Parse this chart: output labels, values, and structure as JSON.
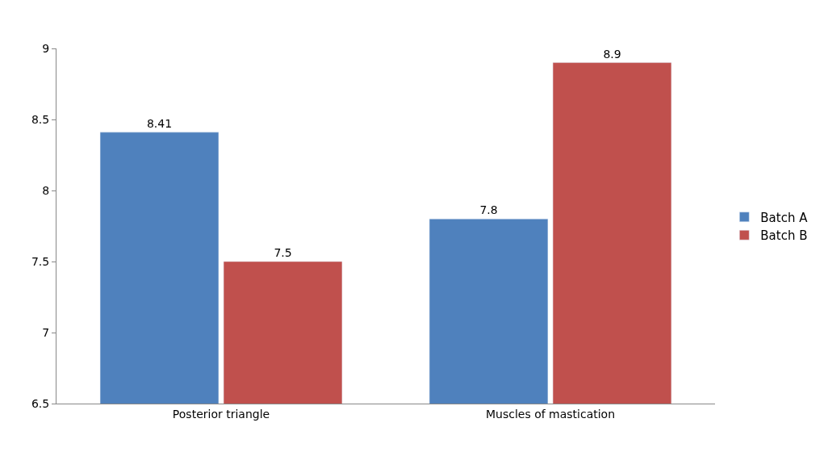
{
  "chart_data": {
    "type": "bar",
    "categories": [
      "Posterior triangle",
      "Muscles of mastication"
    ],
    "series": [
      {
        "name": "Batch A",
        "color": "#4f81bd",
        "values": [
          8.41,
          7.8
        ]
      },
      {
        "name": "Batch B",
        "color": "#c0504d",
        "values": [
          7.5,
          8.9
        ]
      }
    ],
    "ylim": [
      6.5,
      9
    ],
    "yticks": [
      6.5,
      7,
      7.5,
      8,
      8.5,
      9
    ],
    "grid": false,
    "legend": "right",
    "data_labels": true
  }
}
